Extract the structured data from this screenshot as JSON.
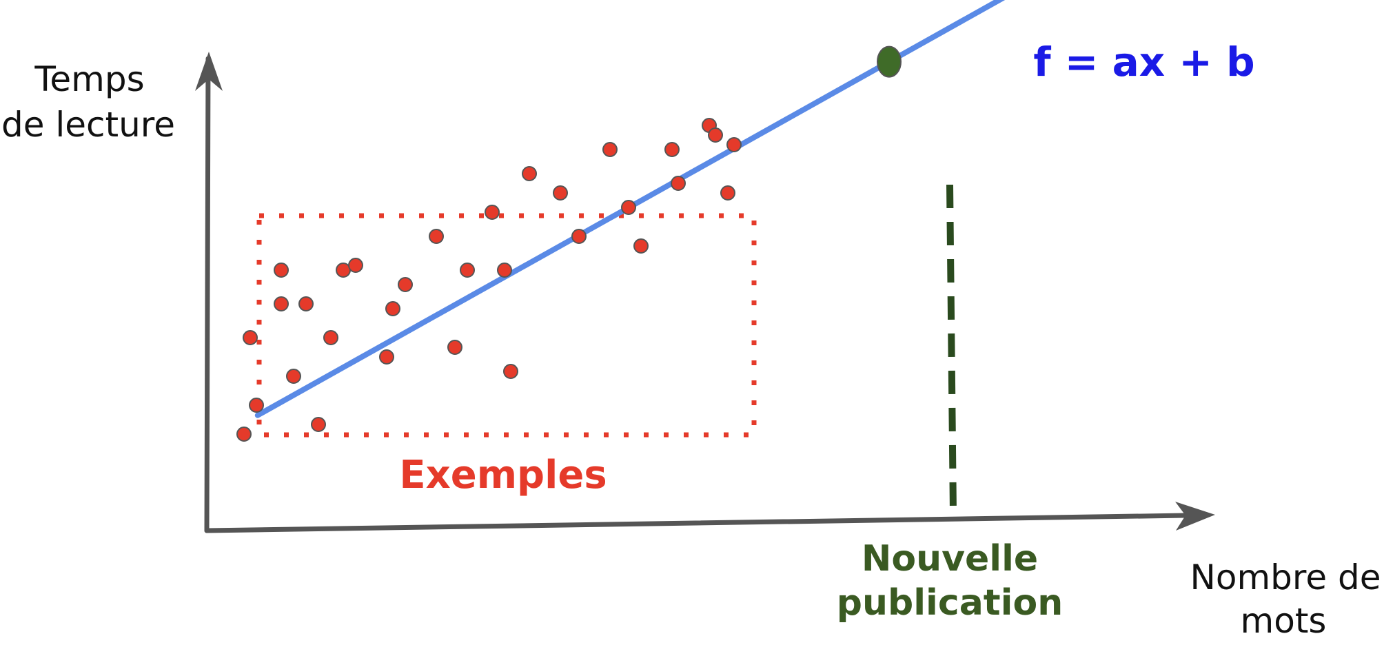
{
  "axes": {
    "y_label_line1": "Temps",
    "y_label_line2": "de lecture",
    "x_label_line1": "Nombre de",
    "x_label_line2": "mots"
  },
  "formula": "f = ax + b",
  "examples_label": "Exemples",
  "new_publication_line1": "Nouvelle",
  "new_publication_line2": "publication",
  "colors": {
    "axis": "#555555",
    "line": "#5a8ae6",
    "formula": "#1a1ae6",
    "points": "#e53a2a",
    "point_stroke": "#555555",
    "examples": "#e53a2a",
    "new_point": "#3f6b28",
    "new_pub_text": "#3a5a22",
    "dashed": "#2a4a1e"
  },
  "chart_data": {
    "type": "scatter",
    "x": [
      0.3,
      0.4,
      0.35,
      0.6,
      0.7,
      0.8,
      0.9,
      0.6,
      1.0,
      1.1,
      1.2,
      1.45,
      1.5,
      1.6,
      1.85,
      2.0,
      2.1,
      2.3,
      2.4,
      2.45,
      2.6,
      2.85,
      3.0,
      3.25,
      3.4,
      3.5,
      3.75,
      3.8,
      4.05,
      4.1,
      4.2,
      4.25
    ],
    "y": [
      1.0,
      1.3,
      2.0,
      2.35,
      1.6,
      2.35,
      1.1,
      2.7,
      2.0,
      2.7,
      2.75,
      1.8,
      2.3,
      2.55,
      3.05,
      1.9,
      2.7,
      3.3,
      2.7,
      1.65,
      3.7,
      3.5,
      3.05,
      3.95,
      3.35,
      2.95,
      3.95,
      3.6,
      4.2,
      4.1,
      3.5,
      4.0
    ],
    "fit_line": {
      "slope": 0.72,
      "intercept": 0.9
    },
    "new_point": {
      "x": 5.5,
      "y": 4.86
    }
  }
}
